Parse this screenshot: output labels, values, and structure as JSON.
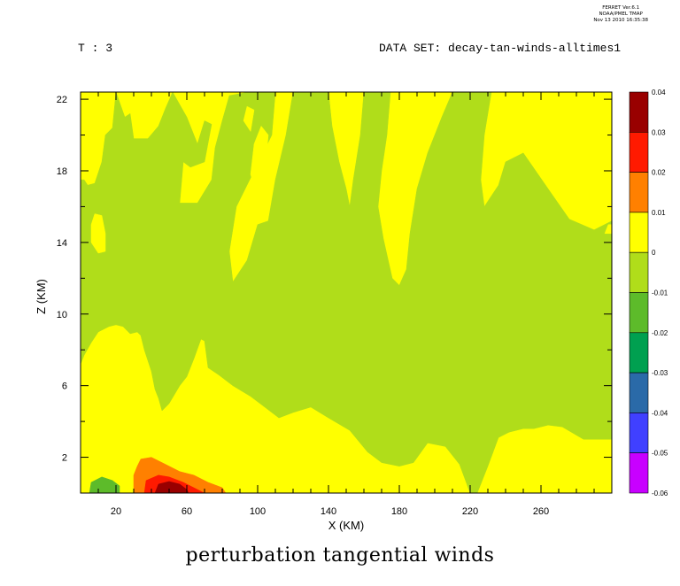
{
  "header": {
    "time_label": "T : 3",
    "dataset_label": "DATA SET: decay-tan-winds-alltimes1",
    "ferret_lines": [
      "FERRET Ver.6.1",
      "NOAA/PMEL TMAP",
      "Nov 13 2010 16:35:38"
    ]
  },
  "caption": "perturbation tangential winds",
  "chart_data": {
    "type": "contour",
    "xlabel": "X (KM)",
    "ylabel": "Z (KM)",
    "xlim": [
      0,
      300
    ],
    "ylim": [
      0,
      22.4
    ],
    "x_ticks": [
      20,
      60,
      100,
      140,
      180,
      220,
      260
    ],
    "y_ticks": [
      2,
      6,
      10,
      14,
      18,
      22
    ],
    "legend_levels": [
      "0.04",
      "0.03",
      "0.02",
      "0.01",
      "0",
      "-0.01",
      "-0.02",
      "-0.03",
      "-0.04",
      "-0.05",
      "-0.06"
    ],
    "legend_colors": [
      "#990000",
      "#ff1a00",
      "#ff8000",
      "#ffff00",
      "#b0dd1a",
      "#5dbb2a",
      "#00a050",
      "#2a6aa8",
      "#4040ff",
      "#c800ff"
    ],
    "colors": {
      "bg": "#b0dd1a",
      "yellow": "#ffff00",
      "orange": "#ff8000",
      "red": "#ff1a00",
      "darkred": "#990000",
      "green": "#5dbb2a"
    },
    "regions": {
      "yellow": [
        [
          [
            0,
            22.4
          ],
          [
            300,
            22.4
          ],
          [
            300,
            0
          ],
          [
            0,
            0
          ]
        ]
      ],
      "green_main": [
        [
          [
            2,
            17.5
          ],
          [
            4,
            17.2
          ],
          [
            8,
            17.3
          ],
          [
            12,
            18.5
          ],
          [
            14,
            20
          ],
          [
            18,
            20.4
          ],
          [
            20,
            22.4
          ],
          [
            25,
            21
          ],
          [
            28,
            21.2
          ],
          [
            30,
            19.8
          ],
          [
            38,
            19.8
          ],
          [
            44,
            20.5
          ],
          [
            48,
            21.5
          ],
          [
            52,
            22.4
          ],
          [
            60,
            21
          ],
          [
            66,
            19.5
          ],
          [
            70,
            20.8
          ],
          [
            74,
            20.6
          ],
          [
            70,
            18.5
          ],
          [
            62,
            18.2
          ],
          [
            58,
            18.5
          ],
          [
            56,
            16.2
          ],
          [
            66,
            16.2
          ],
          [
            74,
            17.5
          ],
          [
            76,
            19.3
          ],
          [
            80,
            20.8
          ],
          [
            84,
            22.2
          ],
          [
            95,
            22.4
          ],
          [
            110,
            22.4
          ],
          [
            108,
            20
          ],
          [
            98,
            18
          ],
          [
            88,
            16
          ],
          [
            84,
            13.5
          ],
          [
            86,
            11.8
          ],
          [
            94,
            13
          ],
          [
            100,
            15
          ],
          [
            106,
            15.2
          ],
          [
            110,
            17.5
          ],
          [
            116,
            20
          ],
          [
            120,
            22.4
          ],
          [
            140,
            22.4
          ],
          [
            142,
            20.5
          ],
          [
            146,
            18.5
          ],
          [
            150,
            17
          ],
          [
            152,
            16
          ],
          [
            154,
            17.5
          ],
          [
            158,
            20
          ],
          [
            160,
            22.4
          ],
          [
            175,
            22.4
          ],
          [
            173,
            20
          ],
          [
            170,
            18
          ],
          [
            168,
            16
          ],
          [
            171,
            14.2
          ],
          [
            176,
            12
          ],
          [
            180,
            11.6
          ],
          [
            184,
            12.5
          ],
          [
            186,
            14.5
          ],
          [
            190,
            17
          ],
          [
            196,
            19
          ],
          [
            204,
            21
          ],
          [
            210,
            22.4
          ],
          [
            232,
            22.4
          ],
          [
            228,
            20
          ],
          [
            226,
            17.5
          ],
          [
            228,
            16
          ],
          [
            236,
            17.2
          ],
          [
            240,
            18.5
          ],
          [
            250,
            19
          ],
          [
            264,
            17
          ],
          [
            276,
            15.3
          ],
          [
            290,
            14.7
          ],
          [
            300,
            15.2
          ],
          [
            300,
            3
          ],
          [
            284,
            3
          ],
          [
            272,
            3.7
          ],
          [
            264,
            3.8
          ],
          [
            256,
            3.6
          ],
          [
            250,
            3.6
          ],
          [
            242,
            3.4
          ],
          [
            236,
            3.1
          ],
          [
            230,
            1.5
          ],
          [
            224,
            0
          ],
          [
            220,
            0
          ],
          [
            214,
            1.6
          ],
          [
            206,
            2.6
          ],
          [
            196,
            2.8
          ],
          [
            188,
            1.7
          ],
          [
            180,
            1.5
          ],
          [
            170,
            1.7
          ],
          [
            162,
            2.3
          ],
          [
            152,
            3.5
          ],
          [
            140,
            4.2
          ],
          [
            130,
            4.8
          ],
          [
            120,
            4.5
          ],
          [
            112,
            4.2
          ],
          [
            104,
            4.8
          ],
          [
            96,
            5.4
          ],
          [
            86,
            6
          ],
          [
            78,
            6.6
          ],
          [
            72,
            7
          ],
          [
            70,
            8.5
          ],
          [
            68,
            8.6
          ],
          [
            64,
            7.5
          ],
          [
            60,
            6.5
          ],
          [
            56,
            6
          ],
          [
            50,
            5
          ],
          [
            46,
            4.6
          ],
          [
            44,
            5.3
          ],
          [
            42,
            5.8
          ],
          [
            40,
            6.8
          ],
          [
            36,
            8
          ],
          [
            34,
            8.8
          ],
          [
            32,
            9
          ],
          [
            28,
            8.9
          ],
          [
            24,
            9.3
          ],
          [
            20,
            9.4
          ],
          [
            16,
            9.3
          ],
          [
            10,
            9
          ],
          [
            6,
            8.4
          ],
          [
            2,
            7.7
          ],
          [
            0,
            7.2
          ],
          [
            0,
            17.5
          ]
        ]
      ],
      "yellow_islands": [
        [
          [
            6,
            15
          ],
          [
            8,
            15.6
          ],
          [
            12,
            15.5
          ],
          [
            14,
            14.5
          ],
          [
            14,
            13.5
          ],
          [
            10,
            13.4
          ],
          [
            6,
            14
          ]
        ],
        [
          [
            96,
            17.8
          ],
          [
            100,
            16.5
          ],
          [
            104,
            17.8
          ],
          [
            106,
            20
          ],
          [
            102,
            20.5
          ],
          [
            98,
            19.5
          ]
        ],
        [
          [
            92,
            20.8
          ],
          [
            96,
            20.2
          ],
          [
            98,
            21.4
          ],
          [
            94,
            21.6
          ]
        ],
        [
          [
            296,
            14.5
          ],
          [
            300,
            14.5
          ],
          [
            300,
            15
          ],
          [
            298,
            15
          ]
        ]
      ],
      "orange": [
        [
          [
            30,
            0
          ],
          [
            30,
            1
          ],
          [
            32,
            1.5
          ],
          [
            34,
            1.9
          ],
          [
            40,
            2
          ],
          [
            48,
            1.6
          ],
          [
            56,
            1.2
          ],
          [
            64,
            1
          ],
          [
            72,
            0.6
          ],
          [
            80,
            0.3
          ],
          [
            82,
            0
          ]
        ]
      ],
      "red": [
        [
          [
            36,
            0
          ],
          [
            37,
            0.7
          ],
          [
            44,
            1
          ],
          [
            50,
            0.9
          ],
          [
            58,
            0.6
          ],
          [
            66,
            0.2
          ],
          [
            70,
            0
          ]
        ]
      ],
      "darkred": [
        [
          [
            42,
            0
          ],
          [
            44,
            0.5
          ],
          [
            50,
            0.65
          ],
          [
            56,
            0.5
          ],
          [
            60,
            0.2
          ],
          [
            61,
            0
          ]
        ]
      ],
      "green_patch": [
        [
          [
            5,
            0
          ],
          [
            6,
            0.6
          ],
          [
            12,
            0.9
          ],
          [
            18,
            0.7
          ],
          [
            22,
            0.4
          ],
          [
            22,
            0
          ]
        ]
      ],
      "yellow_ring": [
        [
          [
            2,
            0
          ],
          [
            4,
            1.2
          ],
          [
            12,
            1.5
          ],
          [
            20,
            1.3
          ],
          [
            26,
            0.9
          ],
          [
            28,
            0
          ]
        ]
      ]
    }
  }
}
